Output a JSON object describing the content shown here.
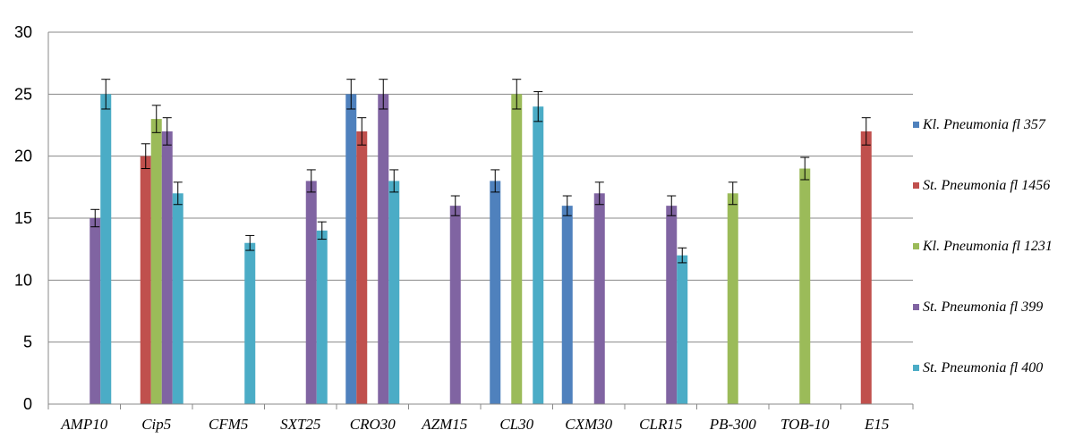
{
  "chart_data": {
    "type": "bar",
    "title": "",
    "xlabel": "",
    "ylabel": "",
    "ylim": [
      0,
      30
    ],
    "y_ticks": [
      "0",
      "5",
      "10",
      "15",
      "20",
      "25",
      "30"
    ],
    "grid": "horizontal",
    "legend_position": "right",
    "error_bars": true,
    "categories": [
      "AMP10",
      "Cip5",
      "CFM5",
      "SXT25",
      "CRO30",
      "AZM15",
      "CL30",
      "CXM30",
      "CLR15",
      "PB-300",
      "TOB-10",
      "E15"
    ],
    "series": [
      {
        "name": "Kl. Pneumonia fl 357",
        "color": "#4f81bd",
        "values": [
          null,
          null,
          null,
          null,
          25,
          null,
          18,
          16,
          null,
          null,
          null,
          null
        ],
        "errors": [
          null,
          null,
          null,
          null,
          1.2,
          null,
          0.9,
          0.8,
          null,
          null,
          null,
          null
        ]
      },
      {
        "name": "St. Pneumonia fl 1456",
        "color": "#c0504d",
        "values": [
          null,
          20,
          null,
          null,
          22,
          null,
          null,
          null,
          null,
          null,
          null,
          22
        ],
        "errors": [
          null,
          1.0,
          null,
          null,
          1.1,
          null,
          null,
          null,
          null,
          null,
          null,
          1.1
        ]
      },
      {
        "name": "Kl. Pneumonia fl 1231",
        "color": "#9bbb59",
        "values": [
          null,
          23,
          null,
          null,
          null,
          null,
          25,
          null,
          null,
          17,
          19,
          null
        ],
        "errors": [
          null,
          1.1,
          null,
          null,
          null,
          null,
          1.2,
          null,
          null,
          0.9,
          0.9,
          null
        ]
      },
      {
        "name": "St. Pneumonia fl 399",
        "color": "#8064a2",
        "values": [
          15,
          22,
          null,
          18,
          25,
          16,
          null,
          17,
          16,
          null,
          null,
          null
        ],
        "errors": [
          0.7,
          1.1,
          null,
          0.9,
          1.2,
          0.8,
          null,
          0.9,
          0.8,
          null,
          null,
          null
        ]
      },
      {
        "name": "St. Pneumonia fl 400",
        "color": "#4bacc6",
        "values": [
          25,
          17,
          13,
          14,
          18,
          null,
          24,
          null,
          12,
          null,
          null,
          null
        ],
        "errors": [
          1.2,
          0.9,
          0.6,
          0.7,
          0.9,
          null,
          1.2,
          null,
          0.6,
          null,
          null,
          null
        ]
      }
    ]
  }
}
